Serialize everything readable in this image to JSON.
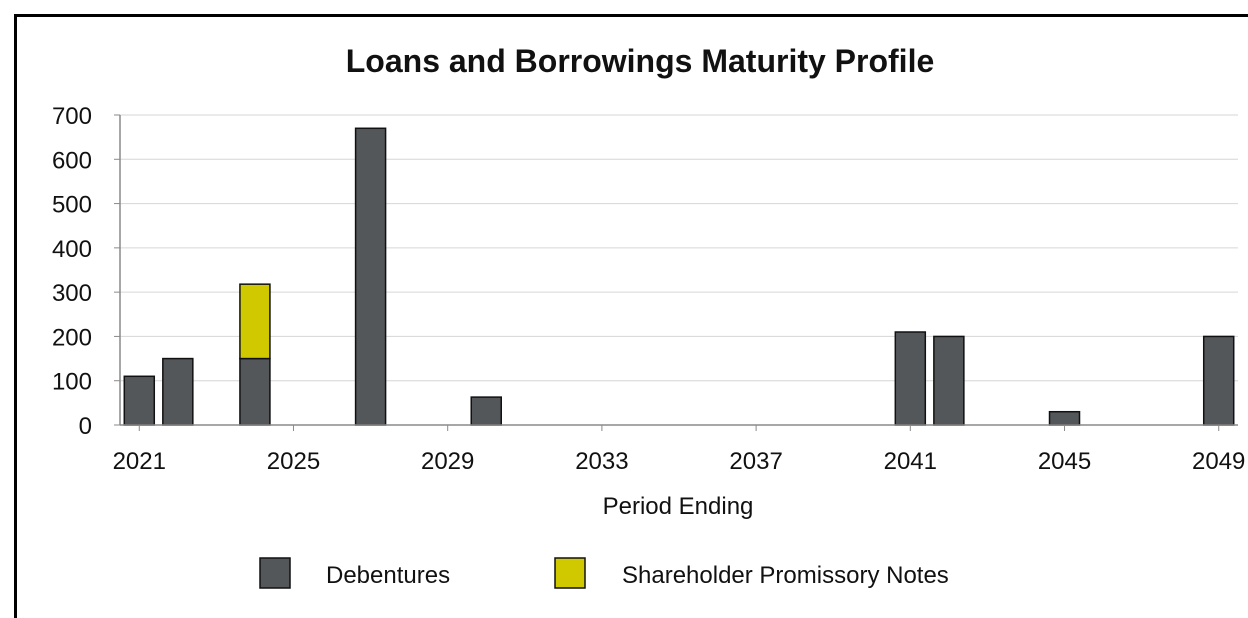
{
  "chart_data": {
    "type": "bar",
    "stacked": true,
    "title": "Loans and Borrowings Maturity Profile",
    "xlabel": "Period Ending",
    "ylabel": "",
    "ylim": [
      0,
      700
    ],
    "yticks": [
      0,
      100,
      200,
      300,
      400,
      500,
      600,
      700
    ],
    "xlim": [
      2020.5,
      2049.5
    ],
    "xticks": [
      2021,
      2025,
      2029,
      2033,
      2037,
      2041,
      2045,
      2049
    ],
    "grid": true,
    "legend_position": "bottom",
    "x": [
      2021,
      2022,
      2024,
      2027,
      2030,
      2041,
      2042,
      2045,
      2049
    ],
    "series": [
      {
        "name": "Debentures",
        "color": "#53575a",
        "values": [
          110,
          150,
          150,
          670,
          63,
          210,
          200,
          30,
          200
        ]
      },
      {
        "name": "Shareholder Promissory Notes",
        "color": "#d1c900",
        "values": [
          0,
          0,
          168,
          0,
          0,
          0,
          0,
          0,
          0
        ]
      }
    ]
  }
}
